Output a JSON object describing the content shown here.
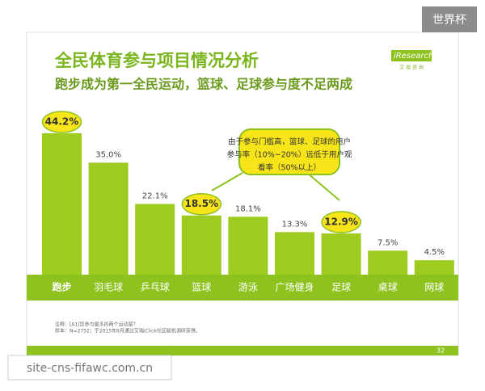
{
  "header": {
    "corner_tag": "世界杯",
    "watermark": "site-cns-fifawc.com.cn",
    "logo": "iResearch",
    "logo_sub": "艾 瑞 咨 询",
    "page_number": "32"
  },
  "chart_data": {
    "type": "bar",
    "title": "全民体育参与项目情况分析",
    "subtitle": "跑步成为第一全民运动，篮球、足球参与度不足两成",
    "categories": [
      "跑步",
      "羽毛球",
      "乒乓球",
      "篮球",
      "游泳",
      "广场健身",
      "足球",
      "桌球",
      "网球"
    ],
    "values": [
      44.2,
      35.0,
      22.1,
      18.5,
      18.1,
      13.3,
      12.9,
      7.5,
      4.5
    ],
    "value_labels": [
      "44.2%",
      "35.0%",
      "22.1%",
      "18.5%",
      "18.1%",
      "13.3%",
      "12.9%",
      "7.5%",
      "4.5%"
    ],
    "highlight": [
      true,
      false,
      false,
      true,
      false,
      false,
      true,
      false,
      false
    ],
    "color": "#9dcb1e",
    "callout": [
      "由于参与门槛高，篮球、足球的用户",
      "参与率（10%~20%）远低于用户观",
      "看率（50%以上）"
    ],
    "notes": [
      "注释：[A1]您参与最多的两个运动是？",
      "样本：N=2752；于2015年6月通过艾瑞iClick社区联机调研获得。"
    ]
  }
}
